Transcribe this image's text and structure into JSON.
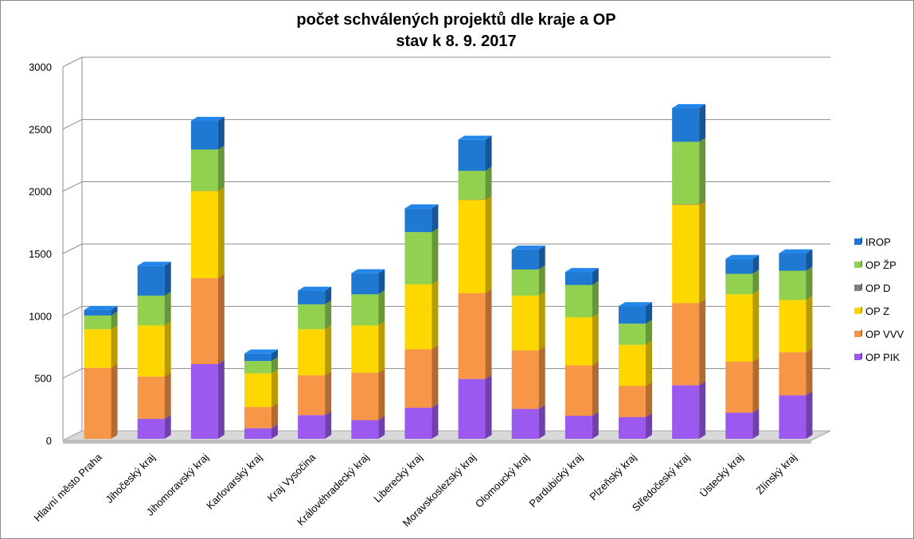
{
  "chart_data": {
    "type": "bar",
    "stacked": true,
    "title_line1": "počet schválených projektů dle kraje a OP",
    "title_line2": "stav k 8. 9. 2017",
    "xlabel": "",
    "ylabel": "",
    "ylim": [
      0,
      3000
    ],
    "yticks": [
      0,
      500,
      1000,
      1500,
      2000,
      2500,
      3000
    ],
    "grid": true,
    "legend_position": "right",
    "categories": [
      "Hlavní město Praha",
      "Jihočeský kraj",
      "Jihomoravský kraj",
      "Karlovarský kraj",
      "Kraj Vysočina",
      "Královéhradecký kraj",
      "Liberecký kraj",
      "Moravskoslezský kraj",
      "Olomoucký kraj",
      "Pardubický kraj",
      "Plzeňský kraj",
      "Středočeský kraj",
      "Ústecký kraj",
      "Zlínský kraj"
    ],
    "series": [
      {
        "name": "OP PIK",
        "color": "#9b59f0",
        "values": [
          0,
          160,
          600,
          85,
          190,
          150,
          250,
          480,
          240,
          185,
          175,
          430,
          210,
          350
        ]
      },
      {
        "name": "OP VVV",
        "color": "#f79646",
        "values": [
          570,
          340,
          690,
          170,
          320,
          380,
          470,
          690,
          470,
          405,
          250,
          660,
          410,
          345
        ]
      },
      {
        "name": "OP Z",
        "color": "#ffd700",
        "values": [
          310,
          410,
          700,
          270,
          370,
          380,
          520,
          750,
          440,
          385,
          330,
          790,
          540,
          420
        ]
      },
      {
        "name": "OP D",
        "color": "#7f7f7f",
        "values": [
          0,
          0,
          3,
          0,
          0,
          0,
          0,
          2,
          0,
          0,
          0,
          5,
          0,
          0
        ]
      },
      {
        "name": "OP ŽP",
        "color": "#92d050",
        "values": [
          110,
          240,
          330,
          100,
          200,
          250,
          420,
          230,
          210,
          260,
          170,
          500,
          165,
          235
        ]
      },
      {
        "name": "IROP",
        "color": "#1f78d1",
        "values": [
          45,
          240,
          230,
          60,
          110,
          170,
          190,
          250,
          160,
          105,
          140,
          270,
          120,
          140
        ]
      }
    ]
  }
}
